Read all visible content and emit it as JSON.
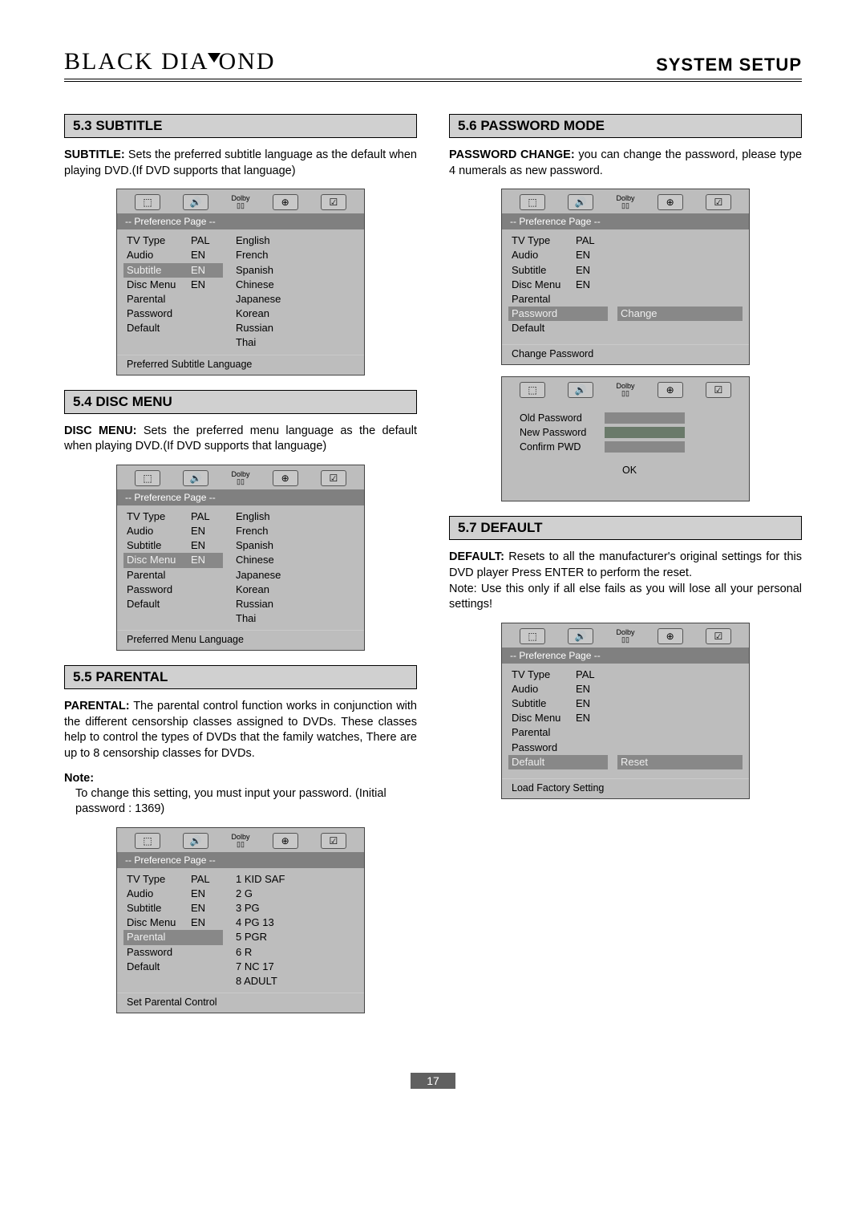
{
  "header": {
    "brand_left": "BLACK DIA",
    "brand_right": "OND",
    "right": "SYSTEM SETUP"
  },
  "page_number": "17",
  "sect_subtitle": {
    "bar": "5.3 SUBTITLE",
    "lead": "SUBTITLE:",
    "text": "Sets the preferred subtitle language as the default when playing DVD.(If DVD supports that language)"
  },
  "sect_discmenu": {
    "bar": "5.4 DISC MENU",
    "lead": "DISC MENU:",
    "text": "Sets the preferred menu language as the default when playing DVD.(If DVD supports that language)"
  },
  "sect_parental": {
    "bar": "5.5 PARENTAL",
    "lead": "PARENTAL:",
    "text": "The parental  control function works in conjunction  with the different censorship classes assigned to DVDs. These classes help to control the types of DVDs that the family watches, There are up to 8 censorship classes for DVDs.",
    "note_label": "Note:",
    "note_text": "To change this setting, you must input your password. (Initial password : 1369)"
  },
  "sect_password": {
    "bar": "5.6 PASSWORD MODE",
    "lead": "PASSWORD CHANGE:",
    "text": "you can change the password, please type 4 numerals as new password."
  },
  "sect_default": {
    "bar": "5.7 DEFAULT",
    "lead": "DEFAULT:",
    "text": "Resets to all the manufacturer's original settings for this DVD player Press ENTER to perform the reset.",
    "text2": "Note: Use this only if all else fails as you will lose all your personal settings!"
  },
  "osd_common": {
    "title": "-- Preference Page --",
    "dolby": "Dolby",
    "labels": [
      "TV Type",
      "Audio",
      "Subtitle",
      "Disc Menu",
      "Parental",
      "Password",
      "Default"
    ],
    "vals": [
      "PAL",
      "EN",
      "EN",
      "EN",
      "",
      "",
      ""
    ]
  },
  "osd_subtitle": {
    "selected_left_index": 2,
    "right": [
      "English",
      "French",
      "Spanish",
      "Chinese",
      "Japanese",
      "Korean",
      "Russian",
      "Thai"
    ],
    "footer": "Preferred Subtitle Language"
  },
  "osd_discmenu": {
    "selected_left_index": 3,
    "right": [
      "English",
      "French",
      "Spanish",
      "Chinese",
      "Japanese",
      "Korean",
      "Russian",
      "Thai"
    ],
    "footer": "Preferred Menu Language"
  },
  "osd_parental": {
    "selected_left_index": 4,
    "right": [
      "1 KID SAF",
      "2 G",
      "3 PG",
      "4 PG 13",
      "5 PGR",
      "6 R",
      "7 NC 17",
      "8 ADULT"
    ],
    "footer": "Set Parental Control"
  },
  "osd_password": {
    "selected_left_index": 5,
    "right_single": "Change",
    "footer": "Change Password"
  },
  "osd_pw_dialog": {
    "old": "Old Password",
    "new": "New Password",
    "confirm": "Confirm PWD",
    "ok": "OK"
  },
  "osd_default": {
    "selected_left_index": 6,
    "right_single": "Reset",
    "footer": "Load Factory Setting"
  }
}
